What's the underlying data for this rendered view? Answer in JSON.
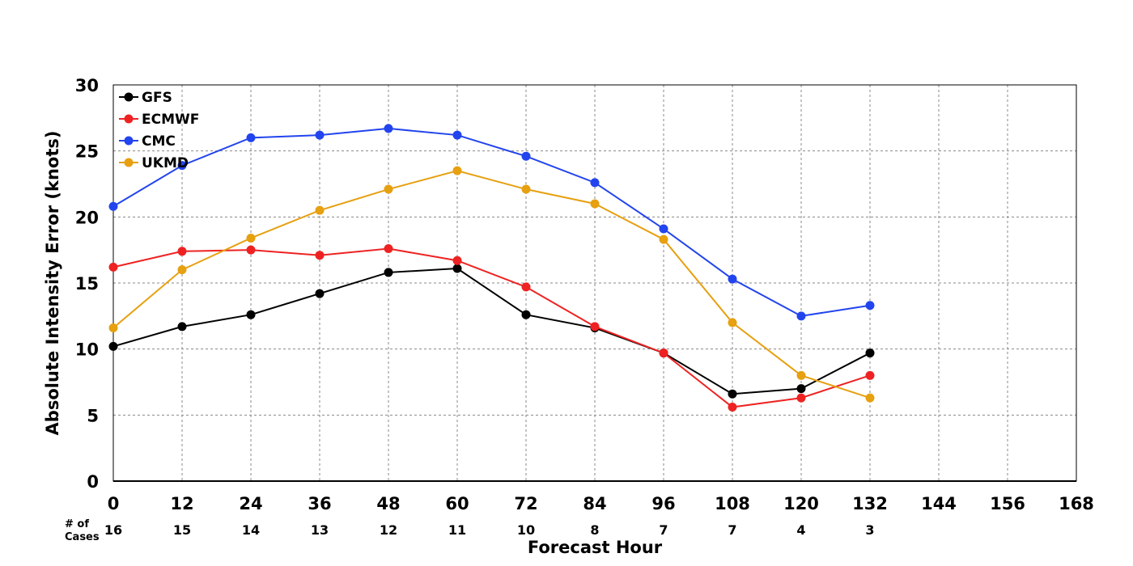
{
  "chart_data": {
    "type": "line",
    "title": "",
    "xlabel": "Forecast Hour",
    "ylabel": "Absolute Intensity Error (knots)",
    "xlim": [
      0,
      168
    ],
    "ylim": [
      0,
      30
    ],
    "x_ticks": [
      0,
      12,
      24,
      36,
      48,
      60,
      72,
      84,
      96,
      108,
      120,
      132,
      144,
      156,
      168
    ],
    "x_tick_labels": [
      "0",
      "12",
      "24",
      "36",
      "48",
      "60",
      "72",
      "84",
      "96",
      "108",
      "120",
      "132",
      "144",
      "156",
      "168"
    ],
    "y_ticks": [
      0,
      5,
      10,
      15,
      20,
      25,
      30
    ],
    "y_tick_labels": [
      "0",
      "5",
      "10",
      "15",
      "20",
      "25",
      "30"
    ],
    "grid": true,
    "legend_position": "top-left",
    "cases_label_line1": "# of",
    "cases_label_line2": "Cases",
    "cases": [
      {
        "x": 0,
        "label": "16"
      },
      {
        "x": 12,
        "label": "15"
      },
      {
        "x": 24,
        "label": "14"
      },
      {
        "x": 36,
        "label": "13"
      },
      {
        "x": 48,
        "label": "12"
      },
      {
        "x": 60,
        "label": "11"
      },
      {
        "x": 72,
        "label": "10"
      },
      {
        "x": 84,
        "label": "8"
      },
      {
        "x": 96,
        "label": "7"
      },
      {
        "x": 108,
        "label": "7"
      },
      {
        "x": 120,
        "label": "4"
      },
      {
        "x": 132,
        "label": "3"
      }
    ],
    "x": [
      0,
      12,
      24,
      36,
      48,
      60,
      72,
      84,
      96,
      108,
      120,
      132
    ],
    "series": [
      {
        "name": "GFS",
        "color": "#000000",
        "values": [
          10.2,
          11.7,
          12.6,
          14.2,
          15.8,
          16.1,
          12.6,
          11.6,
          9.7,
          6.6,
          7.0,
          9.7
        ]
      },
      {
        "name": "ECMWF",
        "color": "#ee2222",
        "values": [
          16.2,
          17.4,
          17.5,
          17.1,
          17.6,
          16.7,
          14.7,
          11.7,
          9.7,
          5.6,
          6.3,
          8.0
        ]
      },
      {
        "name": "CMC",
        "color": "#2244ee",
        "values": [
          20.8,
          23.9,
          26.0,
          26.2,
          26.7,
          26.2,
          24.6,
          22.6,
          19.1,
          15.3,
          12.5,
          13.3
        ]
      },
      {
        "name": "UKMD",
        "color": "#e6a010",
        "values": [
          11.6,
          16.0,
          18.4,
          20.5,
          22.1,
          23.5,
          22.1,
          21.0,
          18.3,
          12.0,
          8.0,
          6.3
        ]
      }
    ]
  }
}
